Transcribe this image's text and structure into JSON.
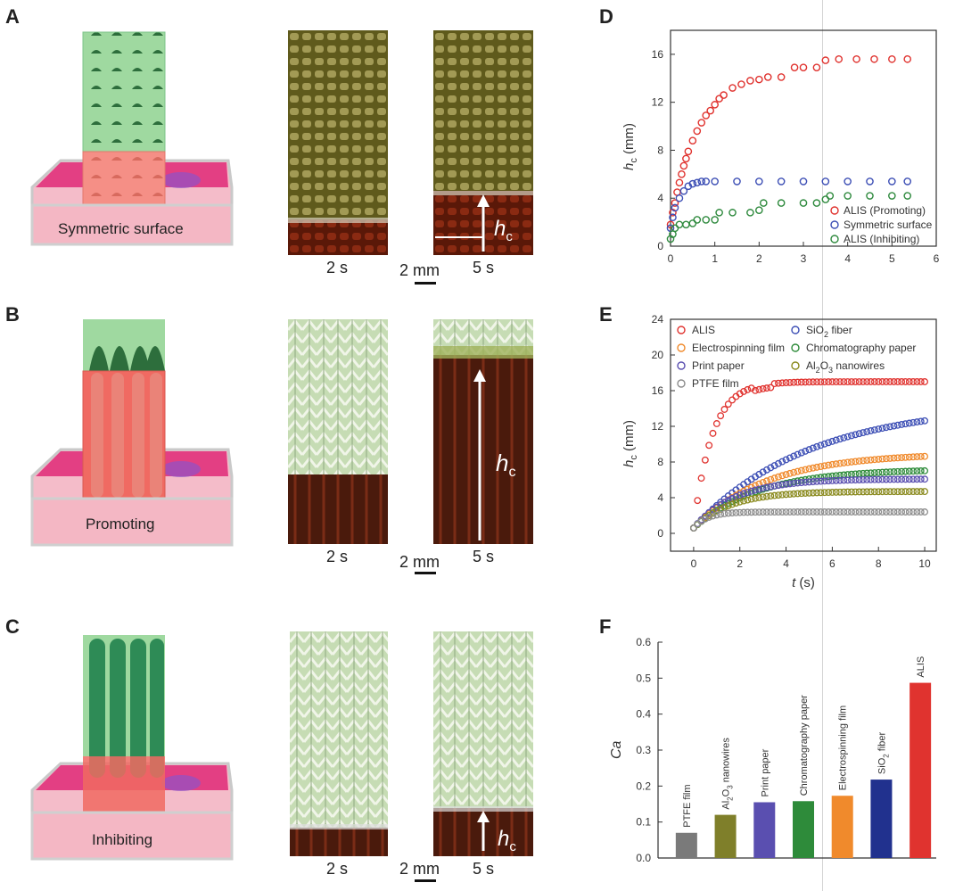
{
  "panels": {
    "A": {
      "label": "A",
      "caption": "Symmetric surface",
      "photo_left": "2 s",
      "photo_right": "5 s",
      "scale": "2 mm",
      "arrow_label": "h",
      "arrow_sub": "c"
    },
    "B": {
      "label": "B",
      "caption": "Promoting",
      "photo_left": "2 s",
      "photo_right": "5 s",
      "scale": "2 mm",
      "arrow_label": "h",
      "arrow_sub": "c"
    },
    "C": {
      "label": "C",
      "caption": "Inhibiting",
      "photo_left": "2 s",
      "photo_right": "5 s",
      "scale": "2 mm",
      "arrow_label": "h",
      "arrow_sub": "c"
    },
    "D": {
      "label": "D"
    },
    "E": {
      "label": "E"
    },
    "F": {
      "label": "F"
    }
  },
  "colors": {
    "red": "#e0332f",
    "blue": "#3d4fb5",
    "green": "#2f8a3e",
    "orange": "#f08a2c",
    "purple": "#5a4fb0",
    "darkgreen": "#2e8b3a",
    "olive": "#8a8a1e",
    "gray": "#8c8c8c",
    "navy": "#21318e",
    "darkgray": "#7a7a7a"
  },
  "chart_data": [
    {
      "id": "D",
      "type": "scatter",
      "ylabel_main": "h",
      "ylabel_sub": "c",
      "ylabel_unit": "(mm)",
      "xlim": [
        0,
        6
      ],
      "ylim": [
        0,
        18
      ],
      "xticks": [
        "0",
        "1",
        "2",
        "3",
        "4",
        "5",
        "6"
      ],
      "yticks": [
        "0",
        "4",
        "8",
        "12",
        "16"
      ],
      "legend": [
        "ALIS (Promoting)",
        "Symmetric surface",
        "ALIS (Inhibiting)"
      ],
      "series": [
        {
          "name": "ALIS (Promoting)",
          "color": "#e0332f",
          "x": [
            0,
            0.05,
            0.1,
            0.15,
            0.2,
            0.25,
            0.3,
            0.35,
            0.4,
            0.5,
            0.6,
            0.7,
            0.8,
            0.9,
            1.0,
            1.1,
            1.2,
            1.4,
            1.6,
            1.8,
            2.0,
            2.2,
            2.5,
            2.8,
            3.0,
            3.3,
            3.5,
            3.8,
            4.2,
            4.6,
            5.0,
            5.35
          ],
          "y": [
            1.8,
            2.8,
            3.6,
            4.5,
            5.3,
            6.0,
            6.7,
            7.3,
            7.9,
            8.8,
            9.6,
            10.3,
            10.9,
            11.3,
            11.8,
            12.3,
            12.6,
            13.2,
            13.5,
            13.8,
            13.9,
            14.1,
            14.1,
            14.9,
            14.9,
            14.9,
            15.5,
            15.6,
            15.6,
            15.6,
            15.6,
            15.6
          ]
        },
        {
          "name": "Symmetric surface",
          "color": "#3d4fb5",
          "x": [
            0,
            0.05,
            0.1,
            0.2,
            0.3,
            0.4,
            0.5,
            0.6,
            0.7,
            0.8,
            1.0,
            1.5,
            2.0,
            2.5,
            3.0,
            3.5,
            4.0,
            4.5,
            5.0,
            5.35
          ],
          "y": [
            1.5,
            2.4,
            3.2,
            4.0,
            4.6,
            5.0,
            5.2,
            5.3,
            5.4,
            5.4,
            5.4,
            5.4,
            5.4,
            5.4,
            5.4,
            5.4,
            5.4,
            5.4,
            5.4,
            5.4
          ]
        },
        {
          "name": "ALIS (Inhibiting)",
          "color": "#2f8a3e",
          "x": [
            0,
            0.05,
            0.1,
            0.2,
            0.35,
            0.5,
            0.6,
            0.8,
            1.0,
            1.1,
            1.4,
            1.8,
            2.0,
            2.1,
            2.5,
            3.0,
            3.3,
            3.5,
            3.6,
            4.0,
            4.5,
            5.0,
            5.35
          ],
          "y": [
            0.6,
            1.0,
            1.5,
            1.8,
            1.8,
            1.9,
            2.2,
            2.2,
            2.2,
            2.8,
            2.8,
            2.8,
            3.0,
            3.6,
            3.6,
            3.6,
            3.6,
            3.9,
            4.2,
            4.2,
            4.2,
            4.2,
            4.2
          ]
        }
      ]
    },
    {
      "id": "E",
      "type": "scatter",
      "xlabel": "t",
      "xunit": "(s)",
      "ylabel_main": "h",
      "ylabel_sub": "c",
      "ylabel_unit": "(mm)",
      "xlim": [
        -1,
        10.5
      ],
      "ylim": [
        -2,
        24
      ],
      "xticks": [
        "0",
        "2",
        "4",
        "6",
        "8",
        "10"
      ],
      "yticks": [
        "0",
        "4",
        "8",
        "12",
        "16",
        "20",
        "24"
      ],
      "legend_left": [
        {
          "text": "ALIS"
        },
        {
          "text": "Electrospinning film"
        },
        {
          "text": "Print paper"
        },
        {
          "text": "PTFE film"
        }
      ],
      "legend_right": [
        {
          "pre": "SiO",
          "sub": "2",
          "post": " fiber"
        },
        {
          "pre": "Chromatography paper",
          "sub": "",
          "post": ""
        },
        {
          "pre": "Al",
          "sub": "2",
          "mid": "O",
          "sub2": "3",
          "post": " nanowires"
        }
      ],
      "series": [
        {
          "name": "ALIS",
          "color": "#e0332f",
          "final": 17.0,
          "tau": 0.8,
          "steps": true
        },
        {
          "name": "SiO2 fiber",
          "color": "#3d4fb5",
          "final": 14.5,
          "tau": 5.0
        },
        {
          "name": "Electrospinning film",
          "color": "#f08a2c",
          "final": 9.0,
          "tau": 3.2
        },
        {
          "name": "Chromatography paper",
          "color": "#2e8b3a",
          "final": 7.2,
          "tau": 2.8
        },
        {
          "name": "Print paper",
          "color": "#5a4fb0",
          "final": 6.1,
          "tau": 1.8
        },
        {
          "name": "Al2O3 nanowires",
          "color": "#8a8a1e",
          "final": 4.7,
          "tau": 1.6
        },
        {
          "name": "PTFE film",
          "color": "#8c8c8c",
          "final": 2.4,
          "tau": 0.6
        }
      ]
    },
    {
      "id": "F",
      "type": "bar",
      "ylabel": "Ca",
      "ylim": [
        0,
        0.6
      ],
      "yticks": [
        "0.0",
        "0.1",
        "0.2",
        "0.3",
        "0.4",
        "0.5",
        "0.6"
      ],
      "categories": [
        "PTFE film",
        "Al2O3 nanowires",
        "Print paper",
        "Chromatography paper",
        "Electrospinning film",
        "SiO2 fiber",
        "ALIS"
      ],
      "category_labels": [
        {
          "pre": "PTFE film"
        },
        {
          "pre": "Al",
          "sub": "2",
          "mid": "O",
          "sub2": "3",
          "post": " nanowires"
        },
        {
          "pre": "Print paper"
        },
        {
          "pre": "Chromatography paper"
        },
        {
          "pre": "Electrospinning film"
        },
        {
          "pre": "SiO",
          "sub": "2",
          "post": " fiber"
        },
        {
          "pre": "ALIS"
        }
      ],
      "values": [
        0.07,
        0.12,
        0.155,
        0.158,
        0.173,
        0.218,
        0.487
      ],
      "colors": [
        "#7a7a7a",
        "#7f7f2a",
        "#5a4fb0",
        "#2e8b3a",
        "#f08a2c",
        "#21318e",
        "#e0332f"
      ]
    }
  ]
}
